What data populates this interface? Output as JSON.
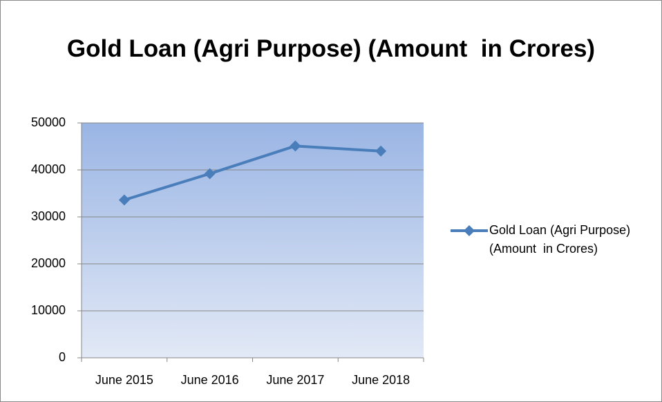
{
  "chart_data": {
    "type": "line",
    "title": "Gold Loan (Agri Purpose) (Amount  in Crores)",
    "categories": [
      "June 2015",
      "June 2016",
      "June 2017",
      "June 2018"
    ],
    "series": [
      {
        "name": "Gold Loan (Agri Purpose) (Amount  in Crores)",
        "color": "#4a7ebb",
        "values": [
          33600,
          39200,
          45100,
          44000
        ]
      }
    ],
    "ylim": [
      0,
      50000
    ],
    "yticks": [
      0,
      10000,
      20000,
      30000,
      40000,
      50000
    ],
    "grid": true,
    "legend": "right"
  }
}
